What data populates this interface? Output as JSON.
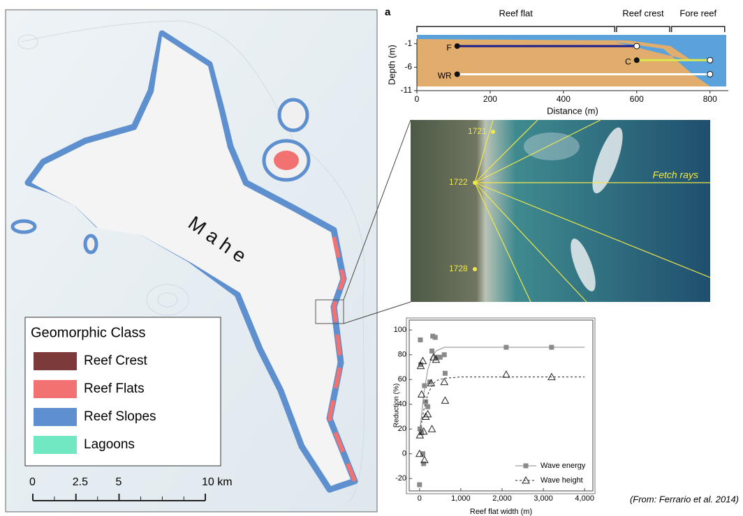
{
  "map": {
    "island_label": "M a h e",
    "legend": {
      "title": "Geomorphic Class",
      "items": [
        {
          "label": "Reef Crest",
          "color": "#7d3a3a"
        },
        {
          "label": "Reef Flats",
          "color": "#f27272"
        },
        {
          "label": "Reef Slopes",
          "color": "#5e8fcf"
        },
        {
          "label": "Lagoons",
          "color": "#72e8c2"
        }
      ]
    },
    "scalebar": {
      "ticks": [
        0,
        2.5,
        5,
        {
          "value": 10,
          "label": "10 km"
        }
      ]
    }
  },
  "cross_section": {
    "panel_label": "a",
    "xlabel": "Distance (m)",
    "ylabel": "Depth (m)",
    "xlim": [
      0,
      850
    ],
    "xticks": [
      0,
      200,
      400,
      600,
      800
    ],
    "ylim": [
      -11,
      0
    ],
    "yticks": [
      -1,
      -6,
      -11
    ],
    "zones": [
      {
        "label": "Reef flat",
        "range": [
          0,
          540
        ]
      },
      {
        "label": "Reef crest",
        "range": [
          545,
          690
        ]
      },
      {
        "label": "Fore reef",
        "range": [
          695,
          840
        ]
      }
    ],
    "transects": [
      {
        "label": "F",
        "x": [
          110,
          600
        ],
        "depth": -1.5,
        "color": "#1c1c8e"
      },
      {
        "label": "C",
        "x": [
          600,
          800
        ],
        "depth": -4.5,
        "color": "#dce84c"
      },
      {
        "label": "WR",
        "x": [
          110,
          800
        ],
        "depth": -7.5,
        "color": "#ffffff"
      }
    ]
  },
  "photo": {
    "stations": [
      "1721",
      "1722",
      "1728"
    ],
    "rays_label": "Fetch rays"
  },
  "chart_data": {
    "type": "scatter",
    "xlabel": "Reef flat width (m)",
    "ylabel": "Reduction (%)",
    "xlim": [
      -250,
      4200
    ],
    "ylim": [
      -30,
      108
    ],
    "xticks": [
      0,
      {
        "value": 1000,
        "label": "1,000"
      },
      {
        "value": 2000,
        "label": "2,000"
      },
      {
        "value": 3000,
        "label": "3,000"
      },
      {
        "value": 4000,
        "label": "4,000"
      }
    ],
    "yticks": [
      -20,
      0,
      20,
      40,
      60,
      80,
      100
    ],
    "fit_x": [
      0,
      100,
      200,
      300,
      400,
      600,
      1000,
      2000,
      3000,
      4000
    ],
    "series": [
      {
        "name": "Wave energy",
        "color": "#8a8a8a",
        "marker": "square",
        "dash": false,
        "x": [
          0,
          20,
          30,
          10,
          50,
          80,
          100,
          120,
          150,
          200,
          250,
          300,
          320,
          380,
          400,
          500,
          600,
          620,
          2100,
          3200
        ],
        "values": [
          -25,
          92,
          72,
          20,
          17,
          0,
          -8,
          55,
          42,
          38,
          58,
          83,
          95,
          94,
          78,
          78,
          80,
          65,
          86,
          86
        ],
        "fit_values": [
          15,
          48,
          68,
          78,
          83,
          86,
          86,
          86,
          86,
          86
        ]
      },
      {
        "name": "Wave height",
        "color": "#222222",
        "marker": "triangle",
        "dash": true,
        "x": [
          0,
          10,
          30,
          50,
          80,
          100,
          120,
          150,
          200,
          280,
          300,
          340,
          400,
          600,
          620,
          2100,
          3200
        ],
        "values": [
          0,
          15,
          71,
          48,
          75,
          18,
          -5,
          30,
          32,
          57,
          20,
          78,
          76,
          58,
          43,
          64,
          62
        ],
        "fit_values": [
          15,
          35,
          48,
          55,
          59,
          61,
          62,
          62,
          62,
          62
        ]
      }
    ]
  },
  "source": "(From: Ferrario et al. 2014)"
}
